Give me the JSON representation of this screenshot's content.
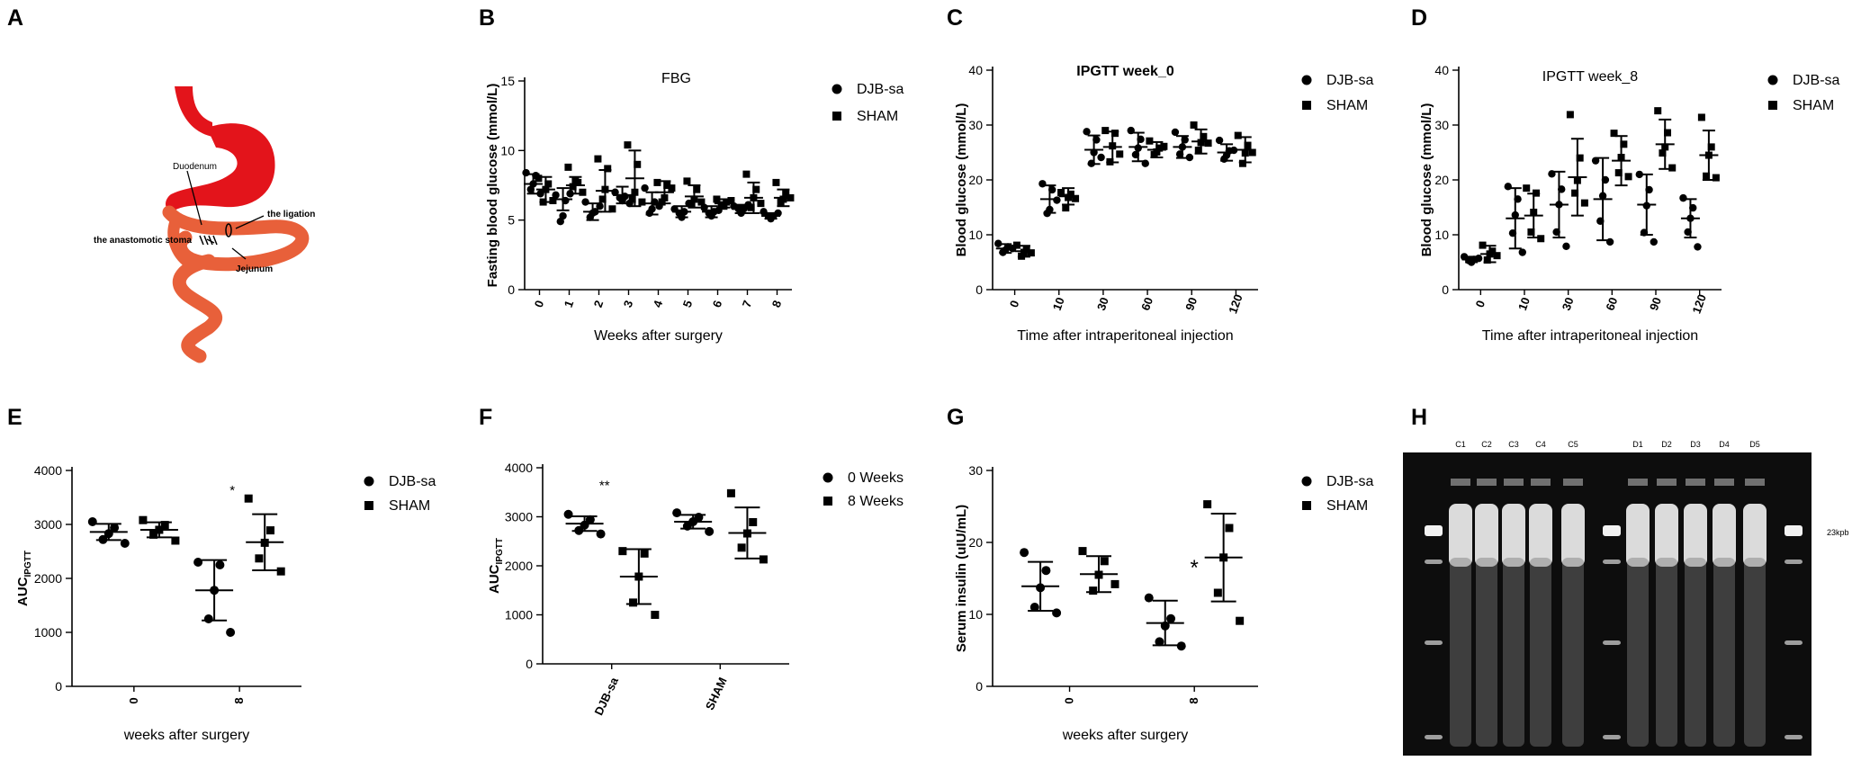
{
  "colors": {
    "ink": "#000000",
    "stomach_red": "#e3141b",
    "intestine_orange": "#e8603a",
    "gel_background": "#0d0d0d",
    "gel_band": "#ffffff"
  },
  "panels": {
    "A": "A",
    "B": "B",
    "C": "C",
    "D": "D",
    "E": "E",
    "F": "F",
    "G": "G",
    "H": "H"
  },
  "diagram": {
    "duodenum": "Duodenum",
    "ligation": "the ligation",
    "stoma": "the anastomotic stoma",
    "jejunum": "Jejunum"
  },
  "gel": {
    "lanes": [
      "C1",
      "C2",
      "C3",
      "C4",
      "C5",
      "D1",
      "D2",
      "D3",
      "D4",
      "D5"
    ],
    "marker_label": "23kpb"
  },
  "chart_data": [
    {
      "id": "B",
      "type": "scatter",
      "title": "FBG",
      "xlabel": "Weeks after surgery",
      "ylabel": "Fasting blood glucose (mmol/L)",
      "ylim": [
        0,
        15
      ],
      "yticks": [
        0,
        5,
        10,
        15
      ],
      "categories": [
        "0",
        "1",
        "2",
        "3",
        "4",
        "5",
        "6",
        "7",
        "8"
      ],
      "legend": [
        "DJB-sa",
        "SHAM"
      ],
      "series": [
        {
          "name": "DJB-sa",
          "marker": "circle",
          "mean": [
            7.6,
            6.5,
            5.6,
            6.8,
            6.2,
            5.6,
            5.6,
            5.8,
            5.3
          ],
          "sd": [
            0.7,
            0.8,
            0.6,
            0.6,
            0.8,
            0.4,
            0.4,
            0.3,
            0.2
          ],
          "points": [
            [
              8.4,
              8.2,
              7.6,
              7.2,
              6.9
            ],
            [
              6.8,
              6.4,
              5.3,
              4.9,
              6.9
            ],
            [
              6.3,
              5.6,
              5.5,
              5.2,
              6.0
            ],
            [
              7.0,
              6.7,
              6.4,
              6.6,
              6.2
            ],
            [
              7.3,
              6.3,
              5.8,
              5.5,
              6.0
            ],
            [
              5.8,
              5.6,
              5.2,
              5.5,
              6.2
            ],
            [
              5.9,
              5.6,
              5.3,
              5.5,
              5.7
            ],
            [
              6.0,
              5.8,
              5.5,
              5.8,
              6.1
            ],
            [
              5.6,
              5.3,
              5.1,
              5.3,
              5.5
            ]
          ]
        },
        {
          "name": "SHAM",
          "marker": "square",
          "mean": [
            7.2,
            7.5,
            7.1,
            8.0,
            7.0,
            6.7,
            6.2,
            6.6,
            6.6
          ],
          "sd": [
            0.9,
            0.6,
            1.5,
            2.0,
            0.8,
            0.8,
            0.3,
            1.1,
            0.6
          ],
          "points": [
            [
              8.0,
              7.6,
              7.2,
              6.3,
              6.4
            ],
            [
              8.8,
              7.7,
              7.8,
              7.4,
              7.0
            ],
            [
              9.4,
              8.7,
              7.2,
              6.5,
              5.8
            ],
            [
              10.4,
              9.0,
              7.0,
              6.5,
              6.3
            ],
            [
              7.7,
              7.5,
              6.6,
              6.3,
              7.3
            ],
            [
              7.8,
              7.2,
              6.5,
              6.2,
              6.3
            ],
            [
              6.5,
              6.3,
              6.0,
              6.1,
              6.4
            ],
            [
              8.3,
              7.2,
              6.6,
              5.9,
              6.2
            ],
            [
              7.7,
              6.9,
              6.5,
              6.3,
              6.6
            ]
          ]
        }
      ]
    },
    {
      "id": "C",
      "type": "scatter",
      "title": "IPGTT week_0",
      "xlabel": "Time after intraperitoneal injection",
      "ylabel": "Blood glucose (mmol/L)",
      "ylim": [
        0,
        40
      ],
      "yticks": [
        0,
        10,
        20,
        30,
        40
      ],
      "categories": [
        "0",
        "10",
        "30",
        "60",
        "90",
        "120"
      ],
      "legend": [
        "DJB-sa",
        "SHAM"
      ],
      "series": [
        {
          "name": "DJB-sa",
          "marker": "circle",
          "mean": [
            7.5,
            16.5,
            25.5,
            26.0,
            26.0,
            25.0
          ],
          "sd": [
            0.8,
            2.5,
            2.6,
            2.6,
            2.0,
            1.5
          ],
          "points": [
            [
              8.4,
              7.8,
              7.2,
              6.8,
              7.5
            ],
            [
              19.3,
              18.2,
              14.6,
              13.9,
              16.3
            ],
            [
              28.8,
              27.3,
              25.0,
              23.0,
              24.1
            ],
            [
              29.0,
              27.4,
              25.8,
              24.6,
              23.0
            ],
            [
              28.7,
              27.3,
              26.0,
              24.7,
              24.1
            ],
            [
              27.2,
              25.3,
              24.5,
              23.8,
              25.4
            ]
          ]
        },
        {
          "name": "SHAM",
          "marker": "square",
          "mean": [
            7.0,
            17.0,
            26.0,
            25.5,
            27.0,
            25.5
          ],
          "sd": [
            1.0,
            1.5,
            2.8,
            1.4,
            2.2,
            2.3
          ],
          "points": [
            [
              8.1,
              7.3,
              6.8,
              6.1,
              6.7
            ],
            [
              17.7,
              17.4,
              16.8,
              14.9,
              16.6
            ],
            [
              29.0,
              28.5,
              26.2,
              23.3,
              24.7
            ],
            [
              27.1,
              25.8,
              25.1,
              24.6,
              26.1
            ],
            [
              30.0,
              27.9,
              26.8,
              25.4,
              26.7
            ],
            [
              28.1,
              26.3,
              24.9,
              23.0,
              25.0
            ]
          ]
        }
      ]
    },
    {
      "id": "D",
      "type": "scatter",
      "title": "IPGTT week_8",
      "xlabel": "Time after intraperitoneal injection",
      "ylabel": "Blood glucose (mmol/L)",
      "ylim": [
        0,
        40
      ],
      "yticks": [
        0,
        10,
        20,
        30,
        40
      ],
      "categories": [
        "0",
        "10",
        "30",
        "60",
        "90",
        "120"
      ],
      "legend": [
        "DJB-sa",
        "SHAM"
      ],
      "series": [
        {
          "name": "DJB-sa",
          "marker": "circle",
          "mean": [
            5.5,
            13.0,
            15.5,
            16.5,
            15.5,
            13.0
          ],
          "sd": [
            0.5,
            5.5,
            6.0,
            7.5,
            5.5,
            3.5
          ],
          "points": [
            [
              6.0,
              5.5,
              5.0,
              5.3,
              5.7
            ],
            [
              18.8,
              16.5,
              13.6,
              10.3,
              6.8
            ],
            [
              21.1,
              18.3,
              15.5,
              10.5,
              7.9
            ],
            [
              23.5,
              20.0,
              17.1,
              12.5,
              8.7
            ],
            [
              21.0,
              18.2,
              15.3,
              10.4,
              8.7
            ],
            [
              16.7,
              14.9,
              13.0,
              10.5,
              7.8
            ]
          ]
        },
        {
          "name": "SHAM",
          "marker": "square",
          "mean": [
            6.5,
            13.5,
            20.5,
            23.5,
            26.5,
            24.5
          ],
          "sd": [
            1.5,
            4.0,
            7.0,
            4.5,
            4.5,
            4.5
          ],
          "points": [
            [
              8.1,
              7.0,
              6.5,
              5.4,
              6.2
            ],
            [
              18.5,
              17.6,
              14.1,
              10.5,
              9.3
            ],
            [
              31.9,
              24.0,
              19.9,
              17.6,
              15.8
            ],
            [
              28.5,
              26.5,
              24.1,
              21.3,
              20.6
            ],
            [
              32.6,
              28.6,
              26.0,
              24.9,
              22.2
            ],
            [
              31.4,
              26.0,
              24.5,
              20.7,
              20.4
            ]
          ]
        }
      ]
    },
    {
      "id": "E",
      "type": "scatter",
      "title": "",
      "xlabel": "weeks after surgery",
      "ylabel": "AUC",
      "ylabel_sub": "IPGTT",
      "ylim": [
        0,
        4000
      ],
      "yticks": [
        0,
        1000,
        2000,
        3000,
        4000
      ],
      "categories": [
        "0",
        "8"
      ],
      "legend": [
        "DJB-sa",
        "SHAM"
      ],
      "annotations": [
        {
          "text": "*",
          "category": "8",
          "y": 3550
        }
      ],
      "series": [
        {
          "name": "DJB-sa",
          "marker": "circle",
          "mean": [
            2860,
            1780
          ],
          "sd": [
            150,
            560
          ],
          "points": [
            [
              3050,
              2940,
              2830,
              2720,
              2650
            ],
            [
              2300,
              2250,
              1780,
              1250,
              1000
            ]
          ]
        },
        {
          "name": "SHAM",
          "marker": "square",
          "mean": [
            2900,
            2670
          ],
          "sd": [
            140,
            520
          ],
          "points": [
            [
              3080,
              2990,
              2900,
              2810,
              2700
            ],
            [
              3480,
              2890,
              2660,
              2370,
              2130
            ]
          ]
        }
      ]
    },
    {
      "id": "F",
      "type": "scatter",
      "title": "",
      "xlabel": "",
      "ylabel": "AUC",
      "ylabel_sub": "IPGTT",
      "ylim": [
        0,
        4000
      ],
      "yticks": [
        0,
        1000,
        2000,
        3000,
        4000
      ],
      "categories": [
        "DJB-sa",
        "SHAM"
      ],
      "legend": [
        "0 Weeks",
        "8 Weeks"
      ],
      "annotations": [
        {
          "text": "**",
          "category": "DJB-sa",
          "y": 3550
        }
      ],
      "series": [
        {
          "name": "0 Weeks",
          "marker": "circle",
          "mean": [
            2860,
            2900
          ],
          "sd": [
            150,
            140
          ],
          "points": [
            [
              3050,
              2940,
              2830,
              2720,
              2650
            ],
            [
              3080,
              2990,
              2900,
              2810,
              2700
            ]
          ]
        },
        {
          "name": "8 Weeks",
          "marker": "square",
          "mean": [
            1780,
            2670
          ],
          "sd": [
            560,
            520
          ],
          "points": [
            [
              2300,
              2250,
              1780,
              1250,
              1000
            ],
            [
              3480,
              2890,
              2660,
              2370,
              2130
            ]
          ]
        }
      ]
    },
    {
      "id": "G",
      "type": "scatter",
      "title": "",
      "xlabel": "weeks after surgery",
      "ylabel": "Serum insulin (uIU/mL)",
      "ylim": [
        0,
        30
      ],
      "yticks": [
        0,
        10,
        20,
        30
      ],
      "categories": [
        "0",
        "8"
      ],
      "legend": [
        "DJB-sa",
        "SHAM"
      ],
      "annotations": [
        {
          "text": "*",
          "category": "8",
          "y": 15.5
        }
      ],
      "series": [
        {
          "name": "DJB-sa",
          "marker": "circle",
          "mean": [
            13.9,
            8.8
          ],
          "sd": [
            3.4,
            3.1
          ],
          "points": [
            [
              18.6,
              16.1,
              13.7,
              11.0,
              10.2
            ],
            [
              12.3,
              9.4,
              8.4,
              6.2,
              5.6
            ]
          ]
        },
        {
          "name": "SHAM",
          "marker": "square",
          "mean": [
            15.6,
            17.9
          ],
          "sd": [
            2.5,
            6.1
          ],
          "points": [
            [
              18.8,
              17.4,
              15.5,
              13.3,
              14.2
            ],
            [
              25.3,
              22.0,
              17.9,
              13.0,
              9.1
            ]
          ]
        }
      ]
    }
  ]
}
